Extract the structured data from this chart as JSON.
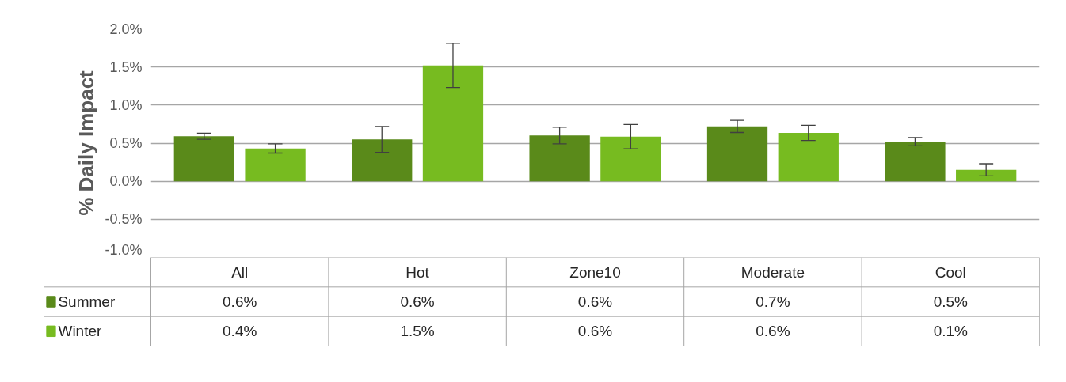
{
  "chart_data": {
    "type": "bar",
    "ylabel": "% Daily Impact",
    "categories": [
      "All",
      "Hot",
      "Zone10",
      "Moderate",
      "Cool"
    ],
    "series": [
      {
        "name": "Summer",
        "color": "#5a8a1a",
        "values": [
          0.59,
          0.55,
          0.6,
          0.72,
          0.52
        ],
        "errors": [
          0.04,
          0.17,
          0.11,
          0.08,
          0.055
        ],
        "value_labels": [
          "0.6%",
          "0.6%",
          "0.6%",
          "0.7%",
          "0.5%"
        ]
      },
      {
        "name": "Winter",
        "color": "#77bb20",
        "values": [
          0.43,
          1.52,
          0.585,
          0.635,
          0.15
        ],
        "errors": [
          0.06,
          0.29,
          0.16,
          0.1,
          0.08
        ],
        "value_labels": [
          "0.4%",
          "1.5%",
          "0.6%",
          "0.6%",
          "0.1%"
        ]
      }
    ],
    "ylim": [
      -1.0,
      2.0
    ],
    "yticks": [
      {
        "value": -1.0,
        "label": "-1.0%"
      },
      {
        "value": -0.5,
        "label": "-0.5%"
      },
      {
        "value": 0,
        "label": "0.0%"
      },
      {
        "value": 0.5,
        "label": "0.5%"
      },
      {
        "value": 1.0,
        "label": "1.0%"
      },
      {
        "value": 1.5,
        "label": "1.5%"
      },
      {
        "value": 2.0,
        "label": "2.0%"
      }
    ],
    "grid": "y",
    "legend": "bottom"
  }
}
